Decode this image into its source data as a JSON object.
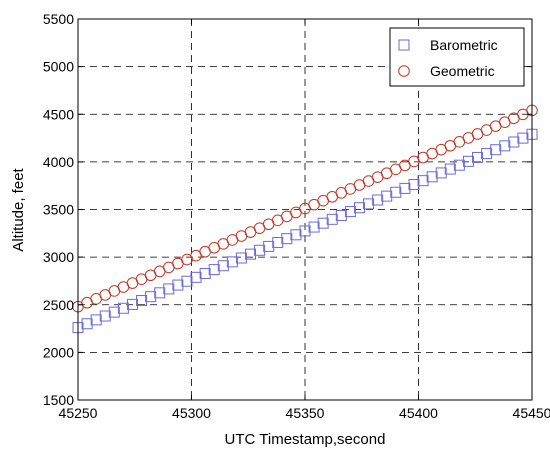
{
  "chart_data": {
    "type": "scatter",
    "title": "",
    "xlabel": "UTC Timestamp,second",
    "ylabel": "Altitude, feet",
    "xlim": [
      45250,
      45450
    ],
    "ylim": [
      1500,
      5500
    ],
    "xticks": [
      45250,
      45300,
      45350,
      45400,
      45450
    ],
    "yticks": [
      1500,
      2000,
      2500,
      3000,
      3500,
      4000,
      4500,
      5000,
      5500
    ],
    "grid": true,
    "legend_position": "top-right",
    "series": [
      {
        "name": "Barometric",
        "marker": "square",
        "color": "#6b6bd6",
        "x_start": 45250,
        "x_end": 45450,
        "x_step": 4,
        "y_start": 2260,
        "y_end": 4290
      },
      {
        "name": "Geometric",
        "marker": "circle",
        "color": "#c0392b",
        "x_start": 45250,
        "x_end": 45450,
        "x_step": 4,
        "y_start": 2480,
        "y_end": 4540
      }
    ]
  }
}
